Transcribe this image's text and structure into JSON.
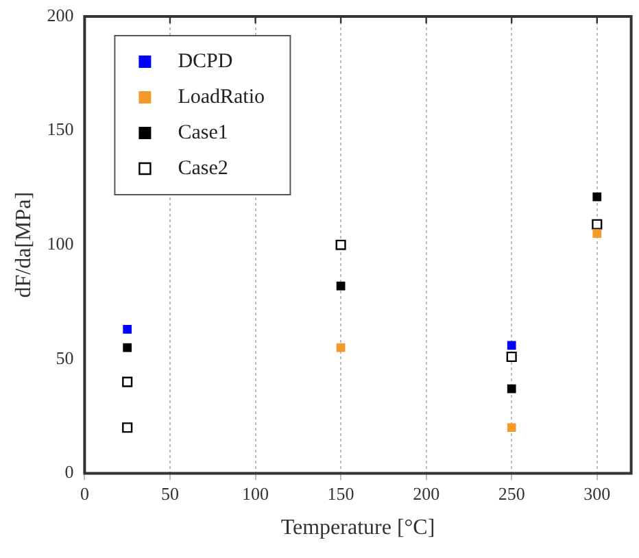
{
  "chart_data": {
    "type": "scatter",
    "xlabel": "Temperature [°C]",
    "ylabel": "dF/da[MPa]",
    "xlim": [
      0,
      320
    ],
    "xticks": [
      0,
      50,
      100,
      150,
      200,
      250,
      300
    ],
    "ylim": [
      0,
      200
    ],
    "yticks": [
      0,
      50,
      100,
      150,
      200
    ],
    "grid": "x",
    "legend": "top left",
    "marker": "square",
    "series": [
      {
        "name": "DCPD",
        "color": "#0000ff",
        "x": [
          25,
          250
        ],
        "values": [
          63,
          56
        ]
      },
      {
        "name": "LoadRatio",
        "color": "#f39a2a",
        "x": [
          150,
          250,
          300
        ],
        "values": [
          55,
          20,
          105
        ]
      },
      {
        "name": "Case1",
        "color": "#000000",
        "x": [
          25,
          150,
          250,
          300
        ],
        "values": [
          55,
          82,
          37,
          121
        ]
      },
      {
        "name": "Case2",
        "color": "#000000",
        "marker": "square-open",
        "x": [
          25,
          25,
          150,
          250,
          300
        ],
        "values": [
          40,
          20,
          100,
          51,
          109
        ]
      }
    ]
  }
}
